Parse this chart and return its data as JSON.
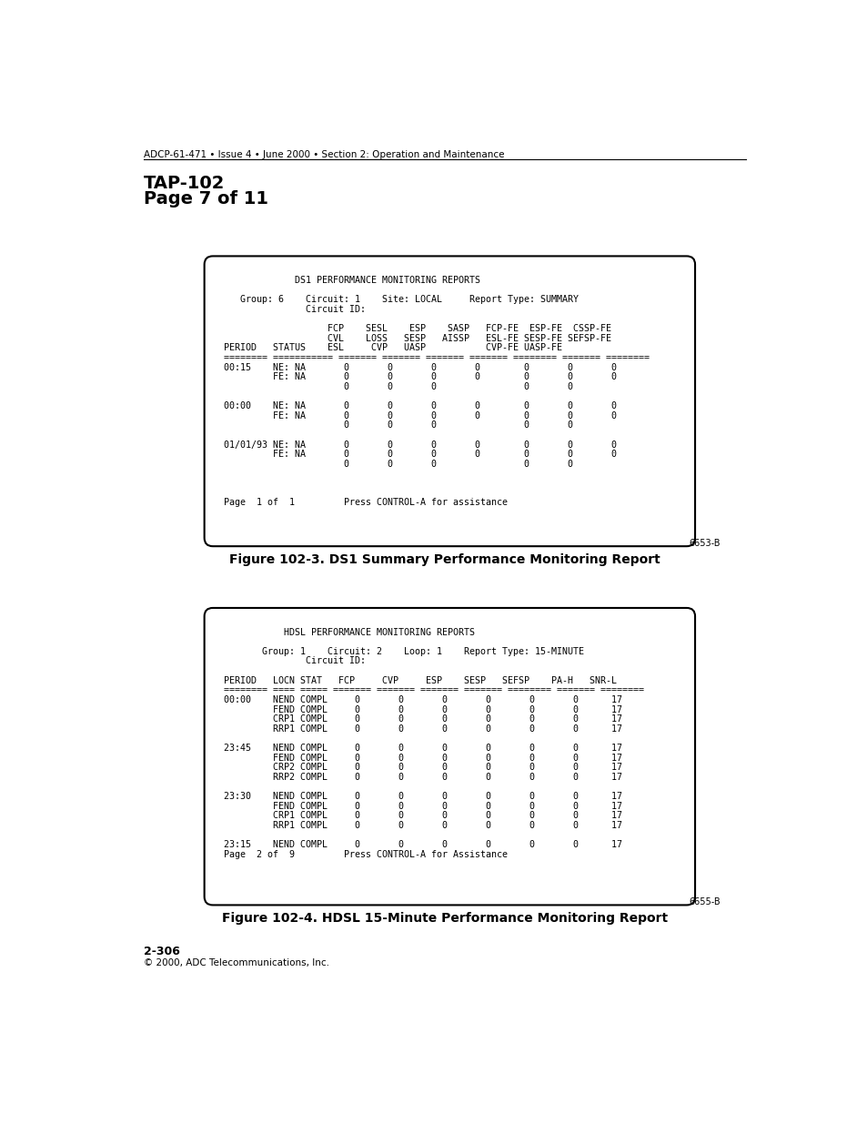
{
  "header_line": "ADCP-61-471 • Issue 4 • June 2000 • Section 2: Operation and Maintenance",
  "tap_title": "TAP-102",
  "tap_subtitle": "Page 7 of 11",
  "figure1_label": "6653-B",
  "figure1_caption": "Figure 102-3. DS1 Summary Performance Monitoring Report",
  "figure2_label": "6655-B",
  "figure2_caption": "Figure 102-4. HDSL 15-Minute Performance Monitoring Report",
  "footer_line1": "2-306",
  "footer_line2": "© 2000, ADC Telecommunications, Inc.",
  "box1_content": [
    "             DS1 PERFORMANCE MONITORING REPORTS",
    "",
    "   Group: 6    Circuit: 1    Site: LOCAL     Report Type: SUMMARY",
    "               Circuit ID:",
    "",
    "                   FCP    SESL    ESP    SASP   FCP-FE  ESP-FE  CSSP-FE",
    "                   CVL    LOSS   SESP   AISSP   ESL-FE SESP-FE SEFSP-FE",
    "PERIOD   STATUS    ESL     CVP   UASP           CVP-FE UASP-FE",
    "======== =========== ======= ======= ======= ======= ======== ======= ========",
    "00:15    NE: NA       0       0       0       0        0       0       0",
    "         FE: NA       0       0       0       0        0       0       0",
    "                      0       0       0                0       0",
    "",
    "00:00    NE: NA       0       0       0       0        0       0       0",
    "         FE: NA       0       0       0       0        0       0       0",
    "                      0       0       0                0       0",
    "",
    "01/01/93 NE: NA       0       0       0       0        0       0       0",
    "         FE: NA       0       0       0       0        0       0       0",
    "                      0       0       0                0       0",
    "",
    "",
    "",
    "Page  1 of  1         Press CONTROL-A for assistance"
  ],
  "box2_content": [
    "           HDSL PERFORMANCE MONITORING REPORTS",
    "",
    "       Group: 1    Circuit: 2    Loop: 1    Report Type: 15-MINUTE",
    "               Circuit ID:",
    "",
    "PERIOD   LOCN STAT   FCP     CVP     ESP    SESP   SEFSP    PA-H   SNR-L",
    "======== ==== ===== ======= ======= ======= ======= ======== ======= ========",
    "00:00    NEND COMPL     0       0       0       0       0       0      17",
    "         FEND COMPL     0       0       0       0       0       0      17",
    "         CRP1 COMPL     0       0       0       0       0       0      17",
    "         RRP1 COMPL     0       0       0       0       0       0      17",
    "",
    "23:45    NEND COMPL     0       0       0       0       0       0      17",
    "         FEND COMPL     0       0       0       0       0       0      17",
    "         CRP2 COMPL     0       0       0       0       0       0      17",
    "         RRP2 COMPL     0       0       0       0       0       0      17",
    "",
    "23:30    NEND COMPL     0       0       0       0       0       0      17",
    "         FEND COMPL     0       0       0       0       0       0      17",
    "         CRP1 COMPL     0       0       0       0       0       0      17",
    "         RRP1 COMPL     0       0       0       0       0       0      17",
    "",
    "23:15    NEND COMPL     0       0       0       0       0       0      17",
    "Page  2 of  9         Press CONTROL-A for Assistance"
  ]
}
